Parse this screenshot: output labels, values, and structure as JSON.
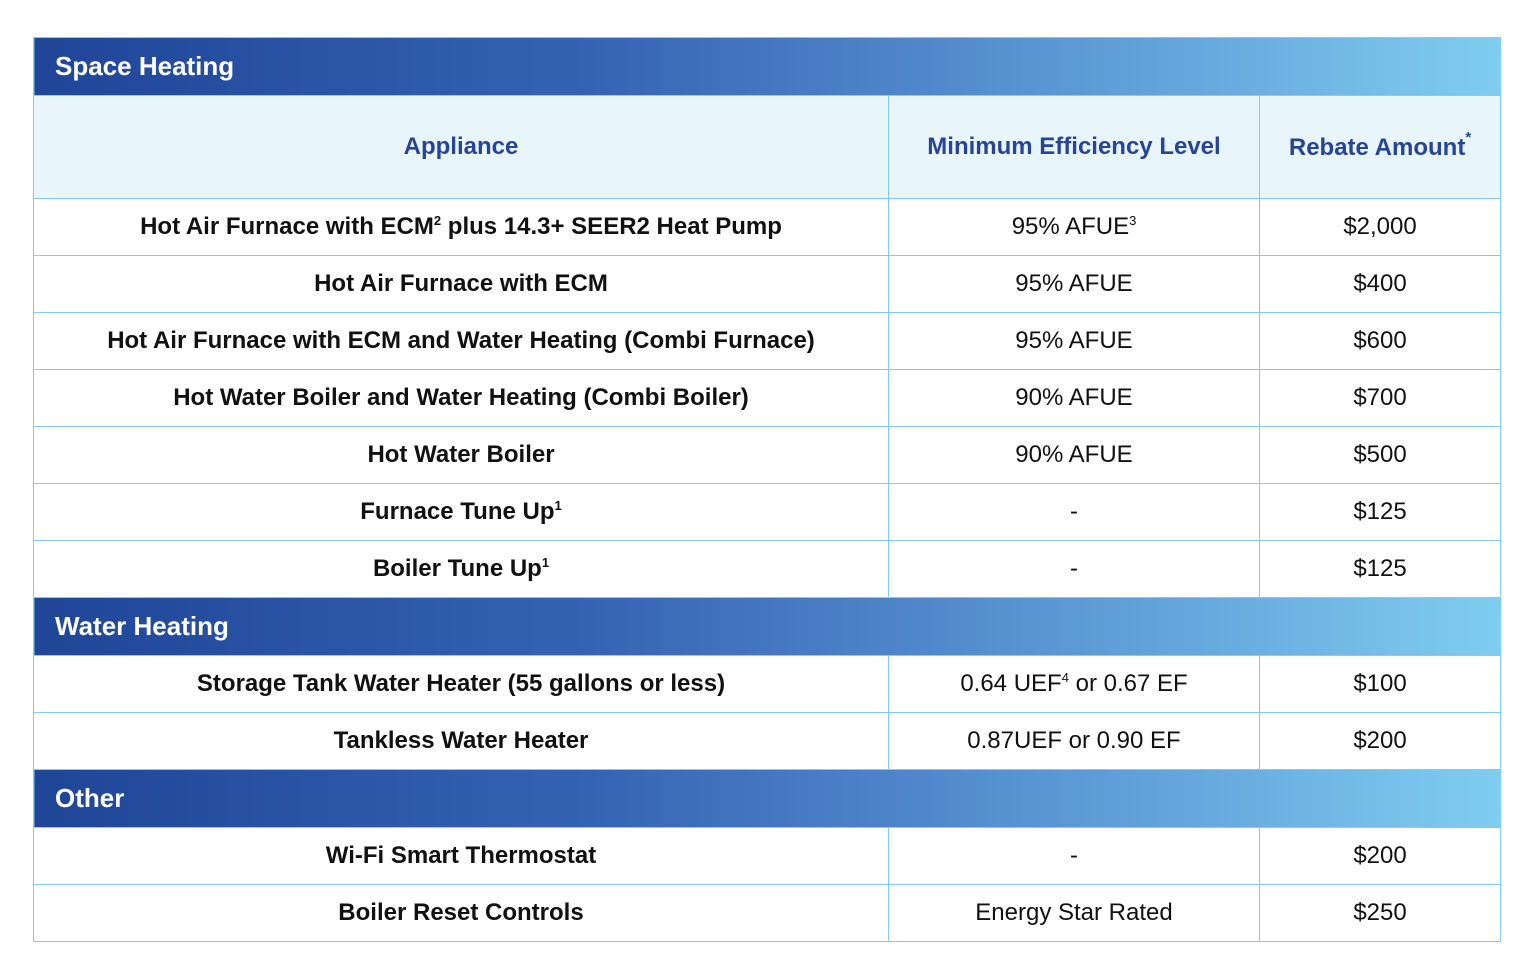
{
  "sections": {
    "space_heating": {
      "title": "Space Heating",
      "rows": [
        {
          "appliance": "Hot Air Furnace with ECM",
          "appliance_sup": "2",
          "appliance_tail": " plus 14.3+ SEER2 Heat Pump",
          "efficiency": "95% AFUE",
          "efficiency_sup": "3",
          "efficiency_tail": "",
          "rebate": "$2,000"
        },
        {
          "appliance": "Hot Air Furnace with ECM",
          "appliance_sup": "",
          "appliance_tail": "",
          "efficiency": "95% AFUE",
          "efficiency_sup": "",
          "efficiency_tail": "",
          "rebate": "$400"
        },
        {
          "appliance": "Hot Air Furnace with ECM and Water Heating (Combi Furnace)",
          "appliance_sup": "",
          "appliance_tail": "",
          "efficiency": "95% AFUE",
          "efficiency_sup": "",
          "efficiency_tail": "",
          "rebate": "$600"
        },
        {
          "appliance": "Hot Water Boiler and Water Heating (Combi Boiler)",
          "appliance_sup": "",
          "appliance_tail": "",
          "efficiency": "90% AFUE",
          "efficiency_sup": "",
          "efficiency_tail": "",
          "rebate": "$700"
        },
        {
          "appliance": "Hot Water Boiler",
          "appliance_sup": "",
          "appliance_tail": "",
          "efficiency": "90% AFUE",
          "efficiency_sup": "",
          "efficiency_tail": "",
          "rebate": "$500"
        },
        {
          "appliance": "Furnace Tune Up",
          "appliance_sup": "1",
          "appliance_tail": "",
          "efficiency": "-",
          "efficiency_sup": "",
          "efficiency_tail": "",
          "rebate": "$125"
        },
        {
          "appliance": "Boiler Tune Up",
          "appliance_sup": "1",
          "appliance_tail": "",
          "efficiency": "-",
          "efficiency_sup": "",
          "efficiency_tail": "",
          "rebate": "$125"
        }
      ]
    },
    "water_heating": {
      "title": "Water Heating",
      "rows": [
        {
          "appliance": "Storage Tank Water Heater (55 gallons or less)",
          "appliance_sup": "",
          "appliance_tail": "",
          "efficiency": "0.64 UEF",
          "efficiency_sup": "4",
          "efficiency_tail": " or 0.67 EF",
          "rebate": "$100"
        },
        {
          "appliance": "Tankless Water Heater",
          "appliance_sup": "",
          "appliance_tail": "",
          "efficiency": "0.87UEF or 0.90 EF",
          "efficiency_sup": "",
          "efficiency_tail": "",
          "rebate": "$200"
        }
      ]
    },
    "other": {
      "title": "Other",
      "rows": [
        {
          "appliance": "Wi-Fi Smart Thermostat",
          "appliance_sup": "",
          "appliance_tail": "",
          "efficiency": "-",
          "efficiency_sup": "",
          "efficiency_tail": "",
          "rebate": "$200"
        },
        {
          "appliance": "Boiler Reset Controls",
          "appliance_sup": "",
          "appliance_tail": "",
          "efficiency": "Energy Star Rated",
          "efficiency_sup": "",
          "efficiency_tail": "",
          "rebate": "$250"
        }
      ]
    }
  },
  "headers": {
    "appliance": "Appliance",
    "efficiency": "Minimum Efficiency Level",
    "rebate": "Rebate Amount",
    "rebate_sup": "*"
  },
  "colors": {
    "section_gradient_start": "#1f4597",
    "section_gradient_end": "#7fcdf1",
    "header_background": "#e8f6fb",
    "header_text": "#27449a",
    "border": "#7fcdf1"
  }
}
